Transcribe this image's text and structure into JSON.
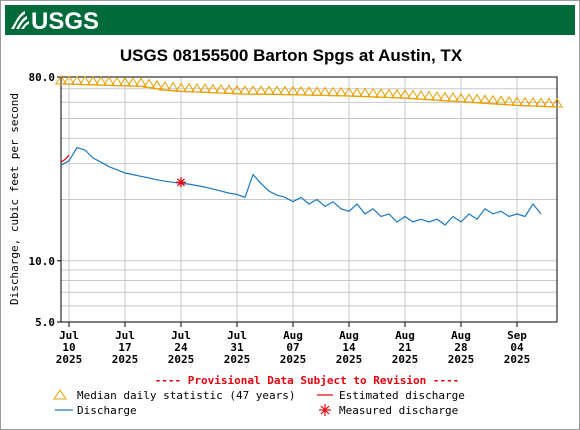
{
  "header": {
    "logo_text": "USGS",
    "brand_color": "#006a3a"
  },
  "chart_data": {
    "type": "line",
    "title": "USGS 08155500 Barton Spgs at Austin, TX",
    "ylabel": "Discharge, cubic feet per second",
    "yscale": "log",
    "ylim": [
      5.0,
      80.0
    ],
    "ytick_labels": [
      {
        "value": 80.0,
        "label": "80.0"
      },
      {
        "value": 10.0,
        "label": "10.0"
      },
      {
        "value": 5.0,
        "label": "5.0"
      }
    ],
    "xlim": [
      "2025-07-09",
      "2025-09-09"
    ],
    "xticks": [
      {
        "date": "2025-07-10",
        "month": "Jul",
        "day": "10",
        "year": "2025"
      },
      {
        "date": "2025-07-17",
        "month": "Jul",
        "day": "17",
        "year": "2025"
      },
      {
        "date": "2025-07-24",
        "month": "Jul",
        "day": "24",
        "year": "2025"
      },
      {
        "date": "2025-07-31",
        "month": "Jul",
        "day": "31",
        "year": "2025"
      },
      {
        "date": "2025-08-07",
        "month": "Aug",
        "day": "07",
        "year": "2025"
      },
      {
        "date": "2025-08-14",
        "month": "Aug",
        "day": "14",
        "year": "2025"
      },
      {
        "date": "2025-08-21",
        "month": "Aug",
        "day": "21",
        "year": "2025"
      },
      {
        "date": "2025-08-28",
        "month": "Aug",
        "day": "28",
        "year": "2025"
      },
      {
        "date": "2025-09-04",
        "month": "Sep",
        "day": "04",
        "year": "2025"
      }
    ],
    "grid": true,
    "provisional_note": "---- Provisional Data Subject to Revision ----",
    "legend": {
      "placement": "bottom",
      "items": [
        {
          "label": "Median daily statistic (47 years)",
          "series": "median"
        },
        {
          "label": "Estimated discharge",
          "series": "estimated"
        },
        {
          "label": "Discharge",
          "series": "discharge"
        },
        {
          "label": "Measured discharge",
          "series": "measured"
        }
      ]
    },
    "series": [
      {
        "name": "Median daily statistic (47 years)",
        "style": "triangle-markers-with-line",
        "color": "#e8a000",
        "points": [
          [
            "2025-07-09",
            74
          ],
          [
            "2025-07-14",
            73
          ],
          [
            "2025-07-19",
            72
          ],
          [
            "2025-07-22",
            69
          ],
          [
            "2025-07-24",
            68
          ],
          [
            "2025-07-28",
            67
          ],
          [
            "2025-08-01",
            66
          ],
          [
            "2025-08-07",
            65.5
          ],
          [
            "2025-08-14",
            64.5
          ],
          [
            "2025-08-21",
            63
          ],
          [
            "2025-08-28",
            60.5
          ],
          [
            "2025-09-04",
            58
          ],
          [
            "2025-09-09",
            57
          ]
        ]
      },
      {
        "name": "Estimated discharge",
        "style": "line",
        "color": "#e8000b",
        "points": [
          [
            "2025-07-09",
            30.5
          ],
          [
            "2025-07-09.5",
            31.5
          ],
          [
            "2025-07-10",
            33
          ]
        ]
      },
      {
        "name": "Discharge",
        "style": "line",
        "color": "#1a78c2",
        "points": [
          [
            "2025-07-09",
            29.5
          ],
          [
            "2025-07-10",
            31
          ],
          [
            "2025-07-11",
            36
          ],
          [
            "2025-07-12",
            35
          ],
          [
            "2025-07-13",
            32
          ],
          [
            "2025-07-14",
            30.5
          ],
          [
            "2025-07-15",
            29
          ],
          [
            "2025-07-16",
            28
          ],
          [
            "2025-07-17",
            27
          ],
          [
            "2025-07-18",
            26.5
          ],
          [
            "2025-07-19",
            26
          ],
          [
            "2025-07-20",
            25.5
          ],
          [
            "2025-07-21",
            25
          ],
          [
            "2025-07-22",
            24.6
          ],
          [
            "2025-07-23",
            24.3
          ],
          [
            "2025-07-24",
            24
          ],
          [
            "2025-07-25",
            23.8
          ],
          [
            "2025-07-26",
            23.4
          ],
          [
            "2025-07-27",
            23
          ],
          [
            "2025-07-28",
            22.5
          ],
          [
            "2025-07-29",
            22
          ],
          [
            "2025-07-30",
            21.5
          ],
          [
            "2025-07-31",
            21.2
          ],
          [
            "2025-08-01",
            20.5
          ],
          [
            "2025-08-02",
            26.5
          ],
          [
            "2025-08-03",
            24
          ],
          [
            "2025-08-04",
            22
          ],
          [
            "2025-08-05",
            21
          ],
          [
            "2025-08-06",
            20.5
          ],
          [
            "2025-08-07",
            19.5
          ],
          [
            "2025-08-08",
            20.5
          ],
          [
            "2025-08-09",
            19
          ],
          [
            "2025-08-10",
            20
          ],
          [
            "2025-08-11",
            18.5
          ],
          [
            "2025-08-12",
            19.5
          ],
          [
            "2025-08-13",
            18
          ],
          [
            "2025-08-14",
            17.5
          ],
          [
            "2025-08-15",
            19
          ],
          [
            "2025-08-16",
            17
          ],
          [
            "2025-08-17",
            18
          ],
          [
            "2025-08-18",
            16.5
          ],
          [
            "2025-08-19",
            17
          ],
          [
            "2025-08-20",
            15.5
          ],
          [
            "2025-08-21",
            16.5
          ],
          [
            "2025-08-22",
            15.5
          ],
          [
            "2025-08-23",
            16
          ],
          [
            "2025-08-24",
            15.5
          ],
          [
            "2025-08-25",
            16
          ],
          [
            "2025-08-26",
            15
          ],
          [
            "2025-08-27",
            16.5
          ],
          [
            "2025-08-28",
            15.5
          ],
          [
            "2025-08-29",
            17
          ],
          [
            "2025-08-30",
            16
          ],
          [
            "2025-08-31",
            18
          ],
          [
            "2025-09-01",
            17
          ],
          [
            "2025-09-02",
            17.5
          ],
          [
            "2025-09-03",
            16.5
          ],
          [
            "2025-09-04",
            17
          ],
          [
            "2025-09-05",
            16.5
          ],
          [
            "2025-09-06",
            19
          ],
          [
            "2025-09-07",
            17
          ]
        ]
      },
      {
        "name": "Measured discharge",
        "style": "asterisk-markers",
        "color": "#e8000b",
        "points": [
          [
            "2025-07-24",
            24.3
          ]
        ]
      }
    ]
  }
}
